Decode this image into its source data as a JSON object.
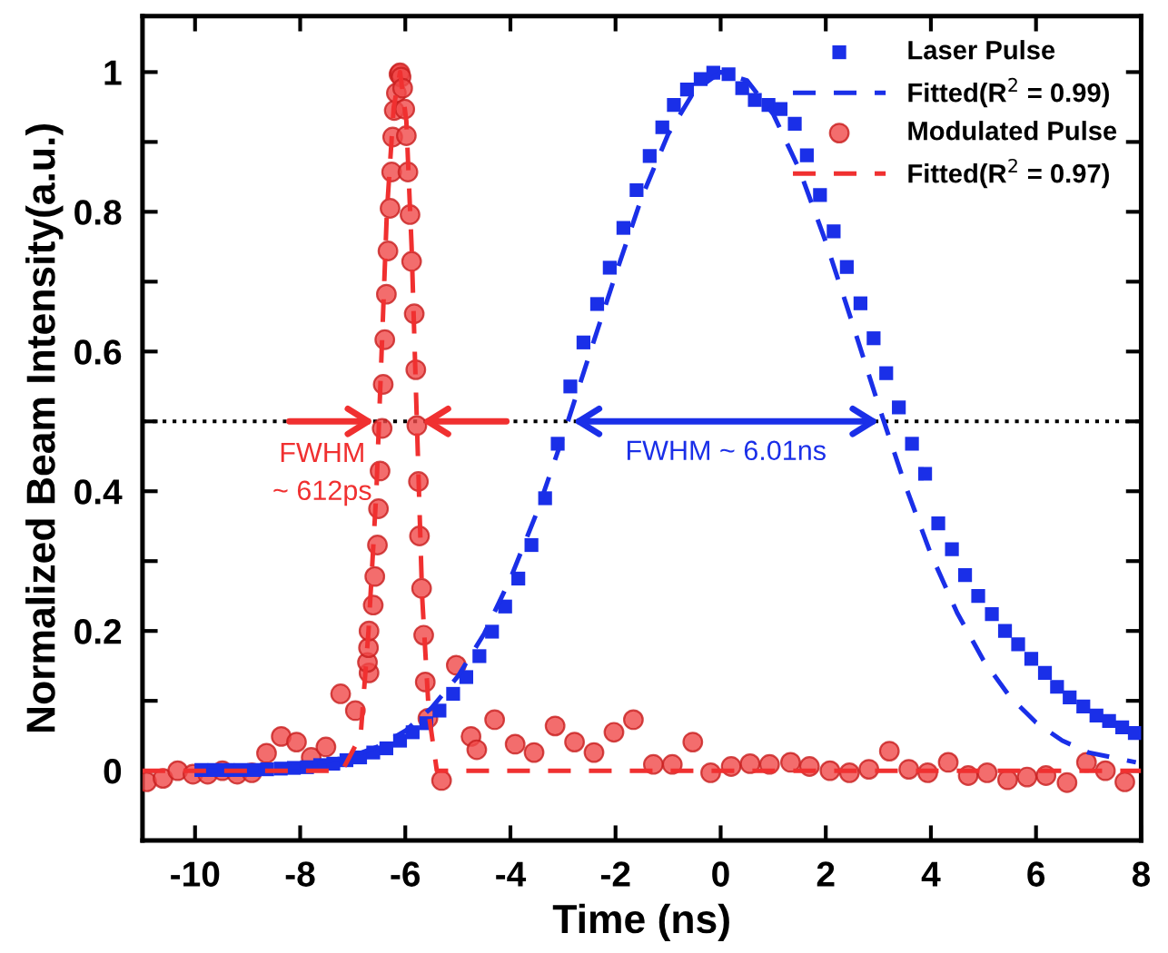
{
  "chart_data": {
    "type": "scatter",
    "xlabel": "Time (ns)",
    "ylabel": "Normalized Beam Intensity(a.u.)",
    "xlim": [
      -11,
      8
    ],
    "xticks": [
      -10,
      -8,
      -6,
      -4,
      -2,
      0,
      2,
      4,
      6,
      8
    ],
    "ylim": [
      -0.1,
      1.08
    ],
    "yticks": [
      0,
      {
        "value": 0.1,
        "label": null
      },
      0.2,
      {
        "value": 0.3,
        "label": null
      },
      0.4,
      {
        "value": 0.5,
        "label": null
      },
      0.6,
      {
        "value": 0.7,
        "label": null
      },
      0.8,
      {
        "value": 0.9,
        "label": null
      },
      1
    ],
    "grid": false,
    "legend": "top right",
    "series": [
      {
        "name": "Laser Pulse",
        "marker": "square",
        "color": "#1a2fe8",
        "x": [
          -9.88,
          -9.63,
          -9.38,
          -9.13,
          -8.88,
          -8.63,
          -8.37,
          -8.12,
          -7.87,
          -7.62,
          -7.37,
          -7.12,
          -6.86,
          -6.61,
          -6.36,
          -6.1,
          -5.86,
          -5.6,
          -5.35,
          -5.09,
          -4.84,
          -4.59,
          -4.35,
          -4.1,
          -3.85,
          -3.6,
          -3.34,
          -3.1,
          -2.86,
          -2.61,
          -2.35,
          -2.11,
          -1.85,
          -1.6,
          -1.35,
          -1.11,
          -0.89,
          -0.64,
          -0.38,
          -0.14,
          0.15,
          0.41,
          0.65,
          0.91,
          1.14,
          1.41,
          1.64,
          1.89,
          2.15,
          2.4,
          2.66,
          2.91,
          3.15,
          3.39,
          3.64,
          3.89,
          4.14,
          4.4,
          4.65,
          4.9,
          5.16,
          5.41,
          5.66,
          5.91,
          6.17,
          6.4,
          6.64,
          6.9,
          7.15,
          7.39,
          7.64,
          7.88
        ],
        "values": [
          0.001,
          0.001,
          0.001,
          0.001,
          0.001,
          0.002,
          0.003,
          0.004,
          0.005,
          0.008,
          0.01,
          0.015,
          0.019,
          0.026,
          0.032,
          0.043,
          0.055,
          0.068,
          0.086,
          0.11,
          0.134,
          0.164,
          0.199,
          0.235,
          0.275,
          0.323,
          0.39,
          0.468,
          0.55,
          0.613,
          0.668,
          0.72,
          0.777,
          0.831,
          0.88,
          0.921,
          0.953,
          0.975,
          0.99,
          0.999,
          0.997,
          0.977,
          0.96,
          0.953,
          0.947,
          0.926,
          0.881,
          0.824,
          0.772,
          0.721,
          0.669,
          0.619,
          0.569,
          0.52,
          0.468,
          0.425,
          0.354,
          0.317,
          0.28,
          0.25,
          0.224,
          0.2,
          0.181,
          0.16,
          0.14,
          0.12,
          0.105,
          0.092,
          0.079,
          0.071,
          0.062,
          0.054
        ]
      },
      {
        "name": "Fitted(R$^{2}$ = 0.99)",
        "type": "line",
        "marker": "none",
        "line_style": "dashed",
        "color": "#1a2fe8",
        "x": [
          -10,
          -9,
          -8,
          -7,
          -6.5,
          -6,
          -5.5,
          -5,
          -4.5,
          -4,
          -3.5,
          -3,
          -2.5,
          -2,
          -1.5,
          -1,
          -0.5,
          0,
          0.5,
          1,
          1.5,
          2,
          2.5,
          3,
          3.5,
          4,
          4.5,
          5,
          5.5,
          6,
          6.5,
          7,
          7.9
        ],
        "values": [
          0.0,
          0.002,
          0.006,
          0.021,
          0.035,
          0.057,
          0.09,
          0.135,
          0.196,
          0.275,
          0.369,
          0.478,
          0.595,
          0.71,
          0.821,
          0.911,
          0.973,
          1.0,
          0.988,
          0.94,
          0.86,
          0.757,
          0.642,
          0.524,
          0.411,
          0.31,
          0.226,
          0.158,
          0.106,
          0.069,
          0.043,
          0.026,
          0.012
        ]
      },
      {
        "name": "Modulated Pulse",
        "marker": "circle",
        "color": "#f04848",
        "x": [
          -10.92,
          -10.61,
          -10.33,
          -10.04,
          -9.76,
          -9.48,
          -9.2,
          -8.92,
          -8.64,
          -8.36,
          -8.07,
          -7.79,
          -7.51,
          -7.23,
          -6.95,
          -6.69,
          -6.72,
          -6.7,
          -6.69,
          -6.61,
          -6.58,
          -6.53,
          -6.51,
          -6.48,
          -6.44,
          -6.42,
          -6.39,
          -6.36,
          -6.33,
          -6.29,
          -6.26,
          -6.24,
          -6.21,
          -6.17,
          -6.12,
          -6.1,
          -6.08,
          -6.05,
          -6.01,
          -5.98,
          -5.95,
          -5.91,
          -5.88,
          -5.83,
          -5.8,
          -5.78,
          -5.75,
          -5.73,
          -5.69,
          -5.65,
          -5.62,
          -5.57,
          -5.31,
          -5.03,
          -4.75,
          -4.64,
          -4.3,
          -3.91,
          -3.55,
          -3.15,
          -2.78,
          -2.41,
          -2.03,
          -1.66,
          -1.28,
          -0.92,
          -0.53,
          -0.19,
          0.2,
          0.56,
          0.93,
          1.33,
          1.69,
          2.08,
          2.45,
          2.82,
          3.21,
          3.58,
          3.94,
          4.33,
          4.71,
          5.07,
          5.46,
          5.83,
          6.19,
          6.59,
          6.96,
          7.32,
          7.69
        ],
        "values": [
          -0.016,
          -0.011,
          0.0,
          -0.005,
          -0.005,
          0.0,
          -0.005,
          -0.003,
          0.025,
          0.049,
          0.041,
          0.019,
          0.034,
          0.11,
          0.086,
          0.14,
          0.155,
          0.176,
          0.2,
          0.237,
          0.278,
          0.323,
          0.375,
          0.429,
          0.49,
          0.553,
          0.617,
          0.682,
          0.744,
          0.805,
          0.857,
          0.907,
          0.945,
          0.97,
          0.997,
          0.999,
          0.993,
          0.977,
          0.947,
          0.909,
          0.857,
          0.796,
          0.729,
          0.654,
          0.574,
          0.494,
          0.414,
          0.336,
          0.261,
          0.194,
          0.127,
          0.075,
          -0.014,
          0.151,
          0.049,
          0.03,
          0.073,
          0.038,
          0.026,
          0.064,
          0.041,
          0.026,
          0.055,
          0.073,
          0.009,
          0.009,
          0.041,
          -0.003,
          0.006,
          0.01,
          0.009,
          0.012,
          0.006,
          0.0,
          -0.003,
          0.002,
          0.028,
          0.002,
          -0.003,
          0.012,
          -0.007,
          -0.003,
          -0.013,
          -0.009,
          -0.007,
          -0.017,
          0.012,
          0.0,
          -0.016
        ]
      },
      {
        "name": "Fitted(R$^{2}$ = 0.97)",
        "type": "line",
        "marker": "none",
        "line_style": "dashed",
        "color": "#f03030",
        "x": [
          -11,
          -7.2,
          -6.85,
          -6.7,
          -6.55,
          -6.45,
          -6.35,
          -6.22,
          -6.1,
          -5.98,
          -5.88,
          -5.78,
          -5.68,
          -5.55,
          -5.4,
          8
        ],
        "values": [
          0,
          0,
          0.05,
          0.2,
          0.4,
          0.6,
          0.8,
          0.95,
          1.0,
          0.93,
          0.75,
          0.5,
          0.25,
          0.08,
          0,
          0
        ]
      }
    ],
    "ref_lines": [
      {
        "axis": "y",
        "value": 0.5,
        "color": "#000000",
        "line_style": "dotted"
      }
    ],
    "annotations": [
      "FWHM ~ 6.01ns",
      "FWHM\n~ 612ps"
    ]
  }
}
